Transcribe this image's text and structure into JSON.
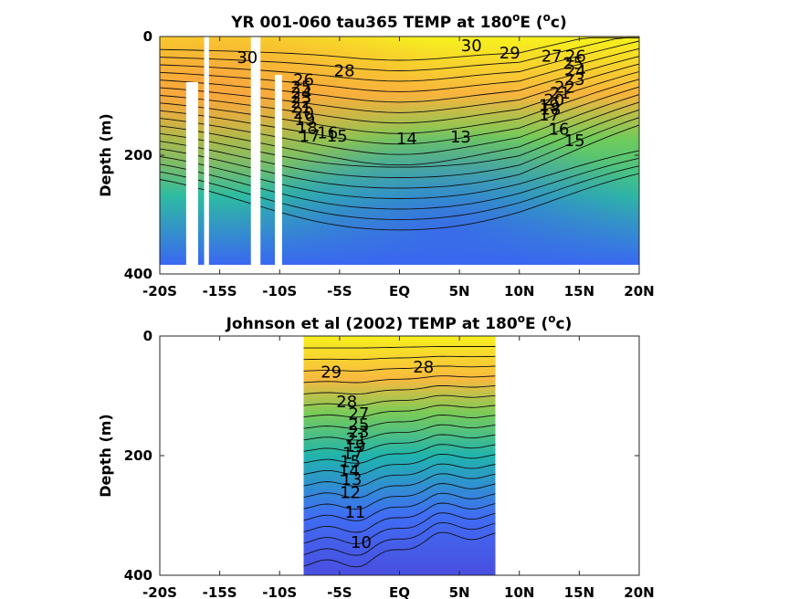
{
  "chart_data": [
    {
      "type": "heatmap",
      "title": "YR 001-060 tau365 TEMP at 180",
      "title_sup1": "o",
      "title_mid": "E (",
      "title_sup2": "o",
      "title_end": "c)",
      "xlabel": "",
      "ylabel": "Depth (m)",
      "xlim": [
        -20,
        20
      ],
      "ylim": [
        0,
        400
      ],
      "y_reversed": true,
      "x_ticks": [
        -20,
        -15,
        -10,
        -5,
        0,
        5,
        10,
        15,
        20
      ],
      "x_tick_labels": [
        "-20S",
        "-15S",
        "-10S",
        "-5S",
        "EQ",
        "5N",
        "10N",
        "15N",
        "20N"
      ],
      "y_ticks": [
        0,
        200,
        400
      ],
      "y_tick_labels": [
        "0",
        "200",
        "400"
      ],
      "data_extent": {
        "x": [
          -20,
          20
        ],
        "y": [
          0,
          380
        ]
      },
      "missing_columns": [
        [
          -17.8,
          -16.8
        ],
        [
          -16.3,
          -15.9
        ],
        [
          -12.4,
          -11.6
        ],
        [
          -10.4,
          -9.8
        ]
      ],
      "contour_levels": [
        13,
        14,
        15,
        16,
        17,
        18,
        19,
        20,
        21,
        22,
        23,
        24,
        25,
        26,
        27,
        28,
        29,
        30
      ],
      "contour_labels": [
        {
          "text": "30",
          "x": 6.0,
          "y": 15
        },
        {
          "text": "30",
          "x": -12.7,
          "y": 35
        },
        {
          "text": "29",
          "x": 9.2,
          "y": 28
        },
        {
          "text": "28",
          "x": -4.6,
          "y": 58
        },
        {
          "text": "27",
          "x": 12.7,
          "y": 33
        },
        {
          "text": "26",
          "x": 14.7,
          "y": 33
        },
        {
          "text": "25",
          "x": 14.5,
          "y": 45
        },
        {
          "text": "24",
          "x": 14.7,
          "y": 58
        },
        {
          "text": "23",
          "x": 14.6,
          "y": 72
        },
        {
          "text": "22",
          "x": 13.8,
          "y": 85
        },
        {
          "text": "21",
          "x": 13.4,
          "y": 95
        },
        {
          "text": "20",
          "x": 12.9,
          "y": 107
        },
        {
          "text": "19",
          "x": 12.5,
          "y": 116
        },
        {
          "text": "18",
          "x": 12.6,
          "y": 122
        },
        {
          "text": "17",
          "x": 12.5,
          "y": 132
        },
        {
          "text": "16",
          "x": 13.3,
          "y": 156
        },
        {
          "text": "15",
          "x": 14.6,
          "y": 175
        },
        {
          "text": "14",
          "x": 0.6,
          "y": 172
        },
        {
          "text": "13",
          "x": 5.1,
          "y": 169
        },
        {
          "text": "26",
          "x": -8.0,
          "y": 73
        },
        {
          "text": "25",
          "x": -8.2,
          "y": 85
        },
        {
          "text": "24",
          "x": -8.2,
          "y": 95
        },
        {
          "text": "23",
          "x": -8.2,
          "y": 103
        },
        {
          "text": "22",
          "x": -8.2,
          "y": 111
        },
        {
          "text": "21",
          "x": -8.2,
          "y": 119
        },
        {
          "text": "20",
          "x": -8.0,
          "y": 129
        },
        {
          "text": "19",
          "x": -7.9,
          "y": 140
        },
        {
          "text": "18",
          "x": -7.7,
          "y": 154
        },
        {
          "text": "17",
          "x": -7.5,
          "y": 168
        },
        {
          "text": "16",
          "x": -6.0,
          "y": 162
        },
        {
          "text": "15",
          "x": -5.2,
          "y": 168
        }
      ]
    },
    {
      "type": "heatmap",
      "title": "Johnson et al (2002) TEMP at 180",
      "title_sup1": "o",
      "title_mid": "E (",
      "title_sup2": "o",
      "title_end": "c)",
      "xlabel": "",
      "ylabel": "Depth (m)",
      "xlim": [
        -20,
        20
      ],
      "ylim": [
        0,
        400
      ],
      "y_reversed": true,
      "x_ticks": [
        -20,
        -15,
        -10,
        -5,
        0,
        5,
        10,
        15,
        20
      ],
      "x_tick_labels": [
        "-20S",
        "-15S",
        "-10S",
        "-5S",
        "EQ",
        "5N",
        "10N",
        "15N",
        "20N"
      ],
      "y_ticks": [
        0,
        200,
        400
      ],
      "y_tick_labels": [
        "0",
        "200",
        "400"
      ],
      "data_extent": {
        "x": [
          -8,
          8
        ],
        "y": [
          0,
          400
        ]
      },
      "contour_levels": [
        10,
        11,
        12,
        13,
        14,
        15,
        16,
        17,
        18,
        19,
        20,
        21,
        22,
        23,
        24,
        25,
        26,
        27,
        28,
        29
      ],
      "contour_labels": [
        {
          "text": "29",
          "x": -5.7,
          "y": 60
        },
        {
          "text": "28",
          "x": 2.0,
          "y": 52
        },
        {
          "text": "28",
          "x": -4.4,
          "y": 110
        },
        {
          "text": "27",
          "x": -3.4,
          "y": 130
        },
        {
          "text": "25",
          "x": -3.4,
          "y": 148
        },
        {
          "text": "23",
          "x": -3.4,
          "y": 160
        },
        {
          "text": "21",
          "x": -3.6,
          "y": 172
        },
        {
          "text": "19",
          "x": -3.7,
          "y": 184
        },
        {
          "text": "17",
          "x": -3.9,
          "y": 196
        },
        {
          "text": "15",
          "x": -4.1,
          "y": 210
        },
        {
          "text": "14",
          "x": -4.2,
          "y": 225
        },
        {
          "text": "13",
          "x": -4.0,
          "y": 240
        },
        {
          "text": "12",
          "x": -4.1,
          "y": 262
        },
        {
          "text": "11",
          "x": -3.7,
          "y": 295
        },
        {
          "text": "10",
          "x": -3.2,
          "y": 345
        }
      ]
    }
  ]
}
